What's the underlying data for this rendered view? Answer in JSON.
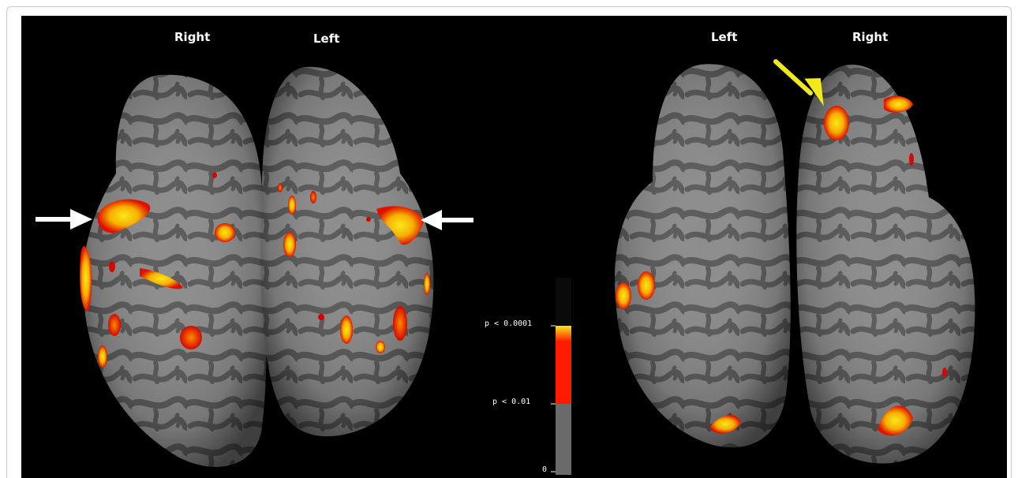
{
  "labels": {
    "left_view": {
      "right": "Right",
      "left": "Left"
    },
    "right_view": {
      "left": "Left",
      "right": "Right"
    }
  },
  "color_scale": {
    "high_label": "p < 0.0001",
    "mid_label": "p < 0.01",
    "zero_label": "0",
    "colors": {
      "yellow": "#f7e61c",
      "red": "#ff1a00",
      "gray": "#6a6a6a"
    }
  },
  "arrows": [
    {
      "color": "#ffffff",
      "icon": "arrow-right-icon"
    },
    {
      "color": "#ffffff",
      "icon": "arrow-left-icon"
    },
    {
      "color": "#f1e91a",
      "icon": "arrow-down-right-icon"
    }
  ]
}
